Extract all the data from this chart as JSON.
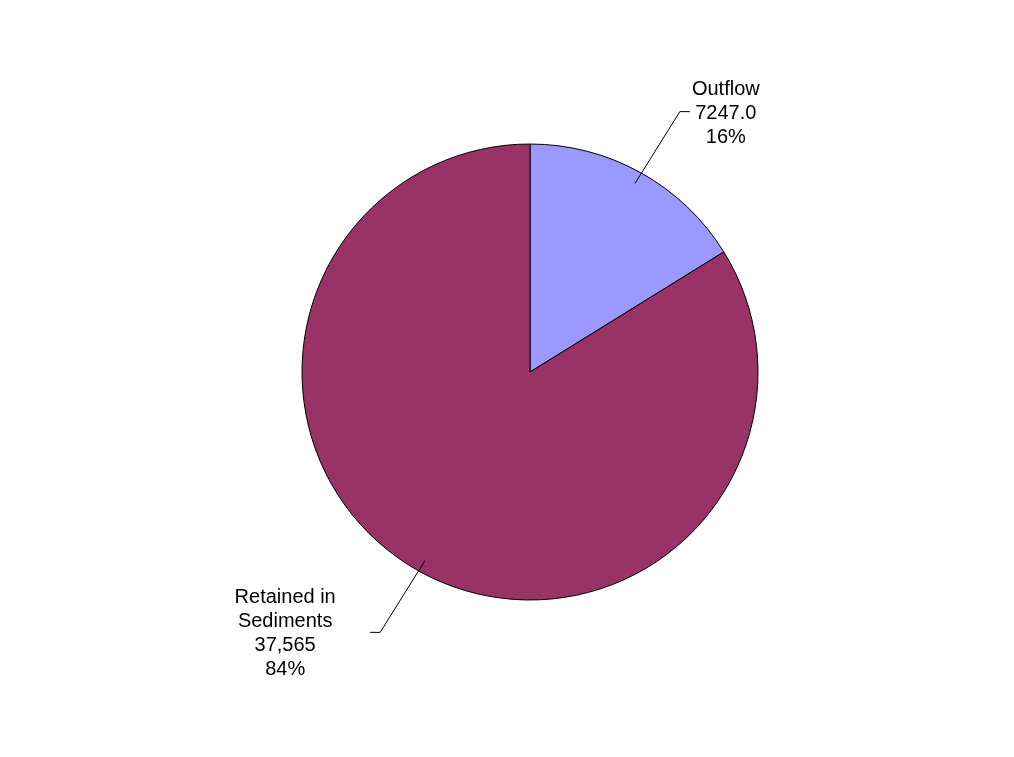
{
  "chart_data": {
    "type": "pie",
    "categories": [
      "Outflow",
      "Retained in Sediments"
    ],
    "values": [
      7247,
      37565
    ],
    "colors": [
      "#9999ff",
      "#993366"
    ],
    "value_labels": [
      "7247.0\n16%",
      "37,565\n84%"
    ]
  }
}
